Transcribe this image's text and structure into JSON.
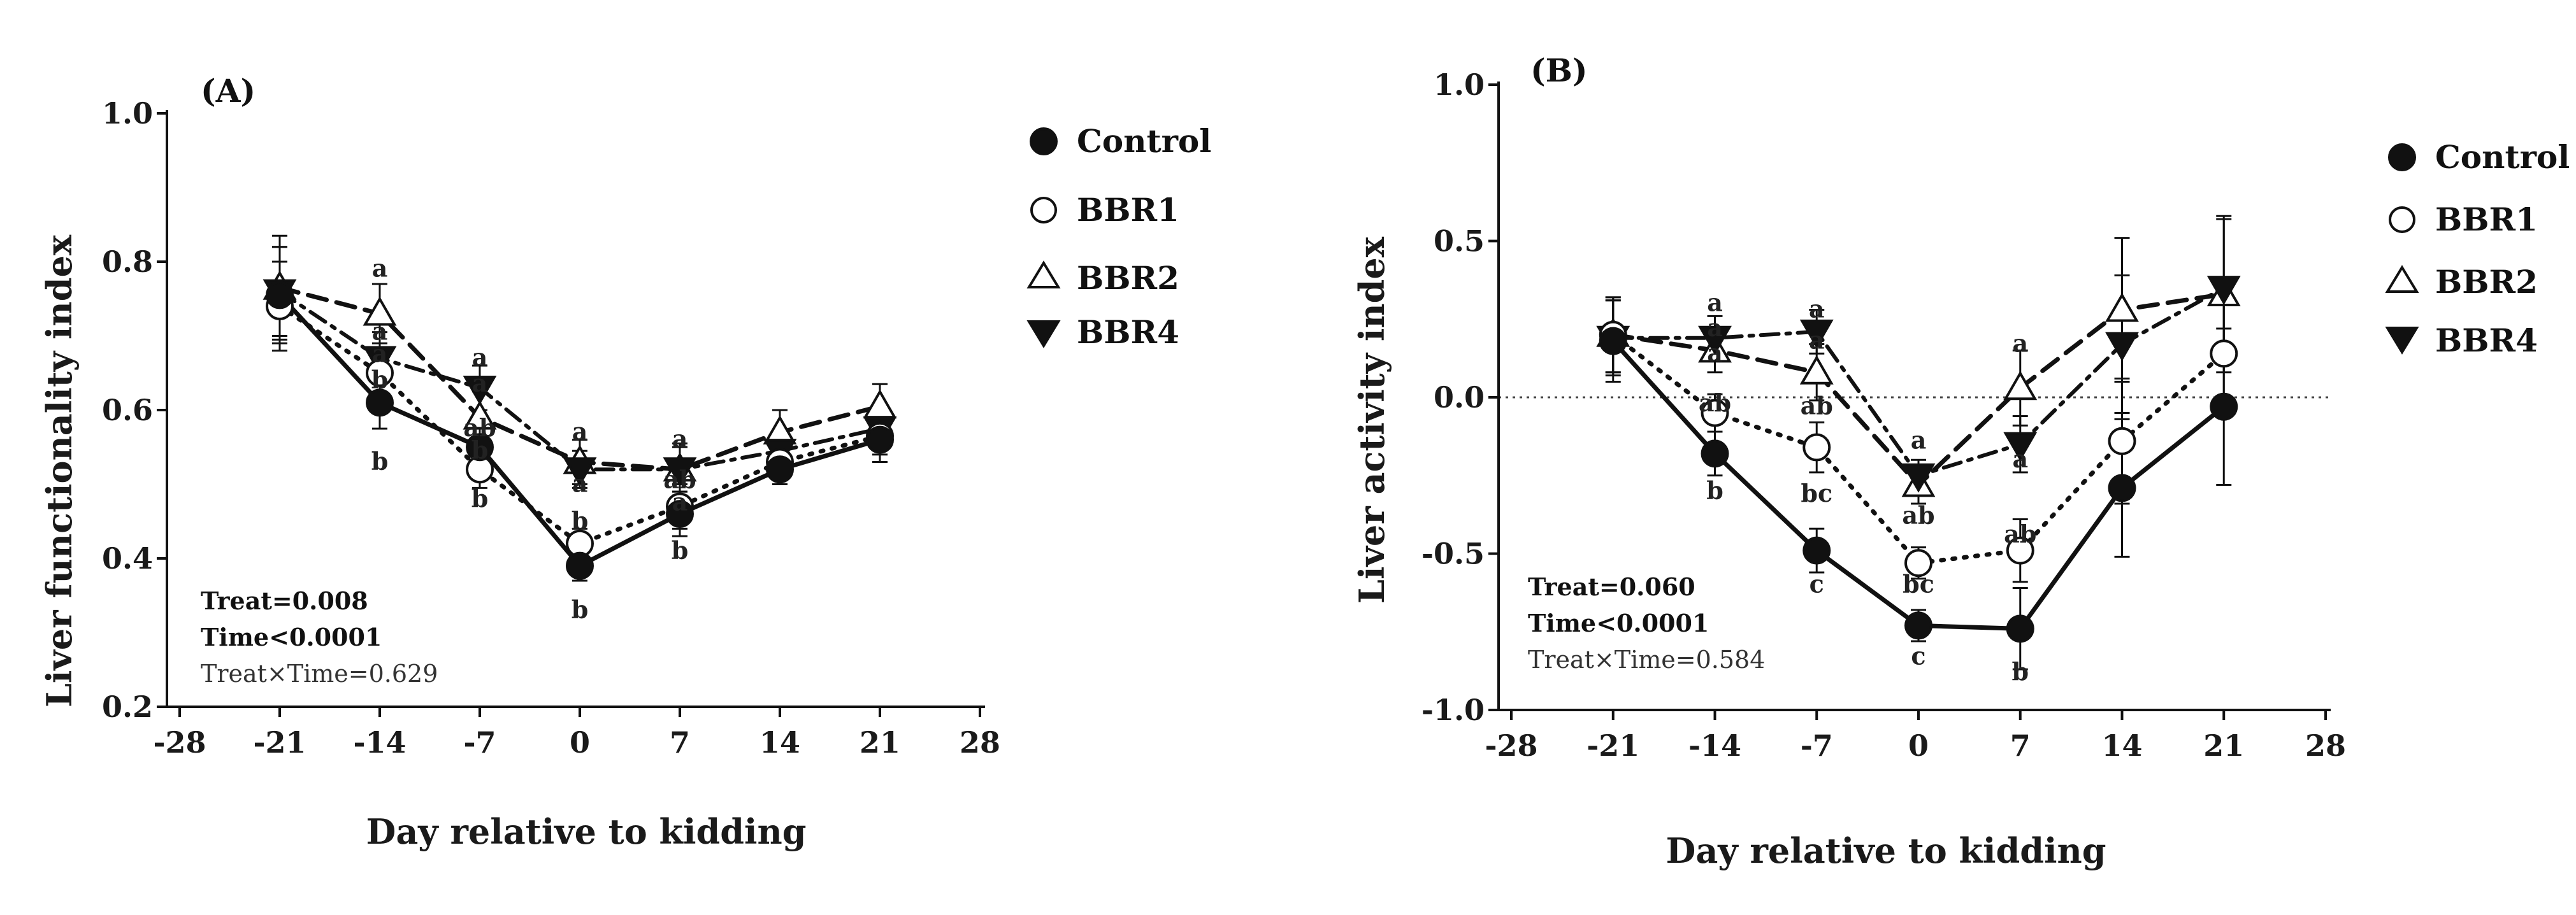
{
  "chart_data": [
    {
      "type": "line",
      "panel": "(A)",
      "title": "",
      "xlabel": "Day relative to kidding",
      "ylabel": "Liver functionality index",
      "xlim": [
        -28,
        28
      ],
      "ylim": [
        0.2,
        1.0
      ],
      "x_ticks": [
        "-28",
        "-21",
        "-14",
        "-7",
        "0",
        "7",
        "14",
        "21",
        "28"
      ],
      "y_ticks": [
        "0.2",
        "0.4",
        "0.6",
        "0.8",
        "1.0"
      ],
      "x": [
        -21,
        -14,
        -7,
        0,
        7,
        14,
        21
      ],
      "series": [
        {
          "name": "Control",
          "values": [
            0.755,
            0.61,
            0.55,
            0.39,
            0.46,
            0.52,
            0.56
          ],
          "errors": [
            0.065,
            0.035,
            0.03,
            0.02,
            0.03,
            0.02,
            0.03
          ]
        },
        {
          "name": "BBR1",
          "values": [
            0.74,
            0.65,
            0.52,
            0.42,
            0.47,
            0.53,
            0.565
          ],
          "errors": [
            0.06,
            0.03,
            0.025,
            0.02,
            0.03,
            0.02,
            0.025
          ]
        },
        {
          "name": "BBR2",
          "values": [
            0.765,
            0.73,
            0.59,
            0.53,
            0.52,
            0.57,
            0.605
          ],
          "errors": [
            0.07,
            0.04,
            0.035,
            0.03,
            0.035,
            0.03,
            0.03
          ]
        },
        {
          "name": "BBR4",
          "values": [
            0.76,
            0.67,
            0.63,
            0.52,
            0.52,
            0.545,
            0.575
          ],
          "errors": [
            0.06,
            0.035,
            0.03,
            0.025,
            0.03,
            0.02,
            0.025
          ]
        }
      ],
      "annotations": [
        {
          "x": -14,
          "y": 0.79,
          "text": "a"
        },
        {
          "x": -14,
          "y": 0.705,
          "text": "a"
        },
        {
          "x": -14,
          "y": 0.675,
          "text": "a"
        },
        {
          "x": -14,
          "y": 0.64,
          "text": "b"
        },
        {
          "x": -14,
          "y": 0.53,
          "text": "b"
        },
        {
          "x": -7,
          "y": 0.67,
          "text": "a"
        },
        {
          "x": -7,
          "y": 0.635,
          "text": "a"
        },
        {
          "x": -7,
          "y": 0.575,
          "text": "ab"
        },
        {
          "x": -7,
          "y": 0.545,
          "text": "b"
        },
        {
          "x": -7,
          "y": 0.48,
          "text": "b"
        },
        {
          "x": 0,
          "y": 0.57,
          "text": "a"
        },
        {
          "x": 0,
          "y": 0.5,
          "text": "a"
        },
        {
          "x": 0,
          "y": 0.45,
          "text": "b"
        },
        {
          "x": 0,
          "y": 0.33,
          "text": "b"
        },
        {
          "x": 7,
          "y": 0.56,
          "text": "a"
        },
        {
          "x": 7,
          "y": 0.505,
          "text": "ab"
        },
        {
          "x": 7,
          "y": 0.475,
          "text": "a"
        },
        {
          "x": 7,
          "y": 0.41,
          "text": "b"
        }
      ],
      "stats": {
        "treat": "Treat=0.008",
        "time": "Time<0.0001",
        "interaction": "Treat×Time=0.629"
      }
    },
    {
      "type": "line",
      "panel": "(B)",
      "title": "",
      "xlabel": "Day relative to kidding",
      "ylabel": "Liver activity index",
      "xlim": [
        -28,
        28
      ],
      "ylim": [
        -1.0,
        1.0
      ],
      "x_ticks": [
        "-28",
        "-21",
        "-14",
        "-7",
        "0",
        "7",
        "14",
        "21",
        "28"
      ],
      "y_ticks": [
        "-1.0",
        "-0.5",
        "0.0",
        "0.5",
        "1.0"
      ],
      "reference_line": 0,
      "x": [
        -21,
        -14,
        -7,
        0,
        7,
        14,
        21
      ],
      "series": [
        {
          "name": "Control",
          "values": [
            0.18,
            -0.18,
            -0.49,
            -0.73,
            -0.74,
            -0.29,
            -0.03
          ],
          "errors": [
            0.13,
            0.07,
            0.07,
            0.05,
            0.13,
            0.22,
            0.25
          ]
        },
        {
          "name": "BBR1",
          "values": [
            0.2,
            -0.05,
            -0.16,
            -0.53,
            -0.49,
            -0.14,
            0.14
          ],
          "errors": [
            0.12,
            0.06,
            0.08,
            0.05,
            0.1,
            0.2,
            0.2
          ]
        },
        {
          "name": "BBR2",
          "values": [
            0.2,
            0.15,
            0.08,
            -0.28,
            0.03,
            0.28,
            0.33
          ],
          "errors": [
            0.12,
            0.07,
            0.09,
            0.06,
            0.12,
            0.23,
            0.25
          ]
        },
        {
          "name": "BBR4",
          "values": [
            0.19,
            0.19,
            0.21,
            -0.25,
            -0.15,
            0.17,
            0.35
          ],
          "errors": [
            0.12,
            0.07,
            0.07,
            0.05,
            0.09,
            0.22,
            0.22
          ]
        }
      ],
      "annotations": [
        {
          "x": -14,
          "y": 0.3,
          "text": "a"
        },
        {
          "x": -14,
          "y": 0.22,
          "text": "a"
        },
        {
          "x": -14,
          "y": 0.14,
          "text": "a"
        },
        {
          "x": -14,
          "y": -0.02,
          "text": "ab"
        },
        {
          "x": -14,
          "y": -0.3,
          "text": "b"
        },
        {
          "x": -7,
          "y": 0.28,
          "text": "a"
        },
        {
          "x": -7,
          "y": 0.18,
          "text": "a"
        },
        {
          "x": -7,
          "y": -0.03,
          "text": "ab"
        },
        {
          "x": -7,
          "y": -0.31,
          "text": "bc"
        },
        {
          "x": -7,
          "y": -0.6,
          "text": "c"
        },
        {
          "x": 0,
          "y": -0.14,
          "text": "a"
        },
        {
          "x": 0,
          "y": -0.38,
          "text": "ab"
        },
        {
          "x": 0,
          "y": -0.6,
          "text": "bc"
        },
        {
          "x": 0,
          "y": -0.83,
          "text": "c"
        },
        {
          "x": 7,
          "y": 0.17,
          "text": "a"
        },
        {
          "x": 7,
          "y": -0.2,
          "text": "a"
        },
        {
          "x": 7,
          "y": -0.44,
          "text": "ab"
        },
        {
          "x": 7,
          "y": -0.88,
          "text": "b"
        }
      ],
      "stats": {
        "treat": "Treat=0.060",
        "time": "Time<0.0001",
        "interaction": "Treat×Time=0.584"
      }
    }
  ],
  "legend": {
    "items": [
      "Control",
      "BBR1",
      "BBR2",
      "BBR4"
    ]
  }
}
